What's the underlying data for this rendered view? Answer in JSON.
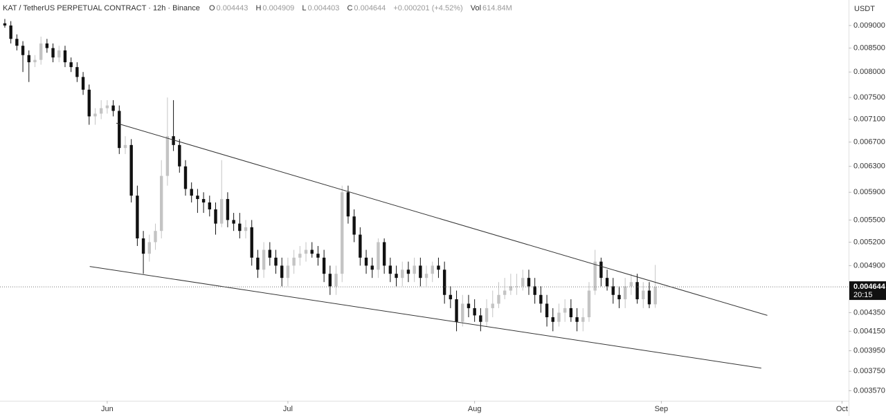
{
  "chart_data": {
    "type": "candlestick",
    "title": "KAT / TetherUS PERPETUAL CONTRACT · 12h · Binance",
    "open_label": "O",
    "high_label": "H",
    "low_label": "L",
    "close_label": "C",
    "change": "+0.000201 (+4.52%)",
    "volume_label": "Vol",
    "volume": "614.84M",
    "currency": "USDT",
    "countdown": "20:15",
    "log_scale": true,
    "up_color": "#c4c4c4",
    "down_color": "#111111",
    "xlim": [
      -17.8,
      123.1
    ],
    "xticks": [
      {
        "value": 0,
        "label": "Jun"
      },
      {
        "value": 30,
        "label": "Jul"
      },
      {
        "value": 61,
        "label": "Aug"
      },
      {
        "value": 92,
        "label": "Sep"
      },
      {
        "value": 122,
        "label": "Oct"
      }
    ],
    "ylim": [
      0.00348,
      0.0096
    ],
    "yticks": [
      {
        "value": 0.009,
        "label": "0.009000"
      },
      {
        "value": 0.0085,
        "label": "0.008500"
      },
      {
        "value": 0.008,
        "label": "0.008000"
      },
      {
        "value": 0.0075,
        "label": "0.007500"
      },
      {
        "value": 0.0071,
        "label": "0.007100"
      },
      {
        "value": 0.0067,
        "label": "0.006700"
      },
      {
        "value": 0.0063,
        "label": "0.006300"
      },
      {
        "value": 0.0059,
        "label": "0.005900"
      },
      {
        "value": 0.0055,
        "label": "0.005500"
      },
      {
        "value": 0.0052,
        "label": "0.005200"
      },
      {
        "value": 0.0049,
        "label": "0.004900"
      },
      {
        "value": 0.00435,
        "label": "0.004350"
      },
      {
        "value": 0.00415,
        "label": "0.004150"
      },
      {
        "value": 0.00395,
        "label": "0.003950"
      },
      {
        "value": 0.00375,
        "label": "0.003750"
      },
      {
        "value": 0.00357,
        "label": "0.003570"
      }
    ],
    "x": [
      -17,
      -16,
      -15,
      -14,
      -13,
      -12,
      -11,
      -10,
      -9,
      -8,
      -7,
      -6,
      -5,
      -4,
      -3,
      -2,
      -1,
      0,
      1,
      2,
      3,
      4,
      5,
      6,
      7,
      8,
      9,
      10,
      11,
      12,
      13,
      14,
      15,
      16,
      17,
      18,
      19,
      20,
      21,
      22,
      23,
      24,
      25,
      26,
      27,
      28,
      29,
      30,
      31,
      32,
      33,
      34,
      35,
      36,
      37,
      38,
      39,
      40,
      41,
      42,
      43,
      44,
      45,
      46,
      47,
      48,
      49,
      50,
      51,
      52,
      53,
      54,
      55,
      56,
      57,
      58,
      59,
      60,
      61,
      62,
      63,
      64,
      65,
      66,
      67,
      68,
      69,
      70,
      71,
      72,
      73,
      74,
      75,
      76,
      77,
      78,
      79,
      80,
      81,
      82,
      83,
      84,
      85,
      86,
      87,
      88,
      89,
      90,
      91
    ],
    "open": [
      0.00905,
      0.009,
      0.0087,
      0.00855,
      0.00835,
      0.0082,
      0.00825,
      0.0086,
      0.0085,
      0.0083,
      0.00845,
      0.0082,
      0.0081,
      0.0079,
      0.00765,
      0.00715,
      0.0072,
      0.0073,
      0.00735,
      0.00725,
      0.0066,
      0.00665,
      0.00585,
      0.00525,
      0.00505,
      0.0052,
      0.00535,
      0.00615,
      0.0068,
      0.00665,
      0.0063,
      0.00595,
      0.00585,
      0.0058,
      0.00575,
      0.00565,
      0.00545,
      0.0058,
      0.0055,
      0.00545,
      0.00535,
      0.0054,
      0.005,
      0.00485,
      0.0051,
      0.005,
      0.0049,
      0.00475,
      0.0049,
      0.005,
      0.00505,
      0.0051,
      0.00505,
      0.005,
      0.0048,
      0.00465,
      0.0048,
      0.0059,
      0.00555,
      0.0053,
      0.005,
      0.0049,
      0.00485,
      0.0052,
      0.0049,
      0.0048,
      0.00475,
      0.00485,
      0.0048,
      0.0049,
      0.00475,
      0.0048,
      0.0049,
      0.00485,
      0.00455,
      0.0045,
      0.00425,
      0.00445,
      0.0044,
      0.00432,
      0.00425,
      0.0044,
      0.00445,
      0.00455,
      0.0046,
      0.00465,
      0.00465,
      0.00475,
      0.00465,
      0.00455,
      0.00445,
      0.0043,
      0.00425,
      0.00435,
      0.0044,
      0.0043,
      0.00425,
      0.0043,
      0.0046,
      0.00495,
      0.00475,
      0.00465,
      0.00455,
      0.0045,
      0.00465,
      0.0047,
      0.0045,
      0.0046,
      0.004443
    ],
    "high": [
      0.00915,
      0.0091,
      0.0088,
      0.00865,
      0.00845,
      0.00835,
      0.00875,
      0.0087,
      0.0086,
      0.00855,
      0.00855,
      0.0083,
      0.0082,
      0.008,
      0.00775,
      0.0073,
      0.00745,
      0.00745,
      0.00745,
      0.00735,
      0.0068,
      0.00675,
      0.006,
      0.00535,
      0.0053,
      0.00545,
      0.0064,
      0.0075,
      0.00745,
      0.00675,
      0.0064,
      0.00605,
      0.00595,
      0.0059,
      0.00585,
      0.00575,
      0.0064,
      0.0059,
      0.0056,
      0.0056,
      0.0055,
      0.0055,
      0.0051,
      0.0052,
      0.0052,
      0.0051,
      0.005,
      0.005,
      0.0051,
      0.00515,
      0.0052,
      0.0052,
      0.00515,
      0.0051,
      0.0049,
      0.0049,
      0.006,
      0.006,
      0.00565,
      0.0054,
      0.0051,
      0.005,
      0.00525,
      0.00525,
      0.005,
      0.0049,
      0.00495,
      0.00495,
      0.005,
      0.005,
      0.0049,
      0.00495,
      0.005,
      0.00495,
      0.00465,
      0.0046,
      0.00455,
      0.00455,
      0.0045,
      0.0044,
      0.0045,
      0.0046,
      0.0047,
      0.00475,
      0.0048,
      0.0048,
      0.00485,
      0.00485,
      0.00475,
      0.00465,
      0.00455,
      0.0044,
      0.00445,
      0.0045,
      0.0045,
      0.0044,
      0.0044,
      0.0047,
      0.0051,
      0.005,
      0.00485,
      0.00475,
      0.00465,
      0.00475,
      0.0048,
      0.0048,
      0.0047,
      0.0047,
      0.004909
    ],
    "low": [
      0.00895,
      0.0086,
      0.00845,
      0.008,
      0.0078,
      0.0081,
      0.00815,
      0.0084,
      0.0082,
      0.0082,
      0.0081,
      0.008,
      0.0078,
      0.00755,
      0.007,
      0.007,
      0.0071,
      0.0072,
      0.00715,
      0.0065,
      0.0065,
      0.00575,
      0.00515,
      0.0048,
      0.00495,
      0.0051,
      0.00525,
      0.006,
      0.00655,
      0.0062,
      0.00585,
      0.00575,
      0.0056,
      0.0056,
      0.00555,
      0.0053,
      0.0054,
      0.0054,
      0.00535,
      0.00525,
      0.00525,
      0.0049,
      0.00475,
      0.00475,
      0.0049,
      0.0048,
      0.00465,
      0.00465,
      0.0048,
      0.0049,
      0.00495,
      0.005,
      0.0049,
      0.0047,
      0.00455,
      0.00455,
      0.0047,
      0.00545,
      0.0052,
      0.0049,
      0.0048,
      0.00475,
      0.00475,
      0.0048,
      0.0047,
      0.00465,
      0.00465,
      0.0047,
      0.0047,
      0.00465,
      0.00465,
      0.0047,
      0.00475,
      0.00445,
      0.0044,
      0.00415,
      0.0042,
      0.0043,
      0.00425,
      0.00415,
      0.0042,
      0.0043,
      0.0044,
      0.0045,
      0.00455,
      0.00455,
      0.0046,
      0.00455,
      0.00445,
      0.00435,
      0.0042,
      0.00415,
      0.0042,
      0.00425,
      0.00425,
      0.00415,
      0.00415,
      0.00425,
      0.00455,
      0.00465,
      0.0046,
      0.00445,
      0.0044,
      0.0044,
      0.00455,
      0.00445,
      0.0044,
      0.0044,
      0.004403
    ],
    "close": [
      0.009,
      0.0087,
      0.00855,
      0.00835,
      0.0082,
      0.00825,
      0.0086,
      0.0085,
      0.0083,
      0.00845,
      0.0082,
      0.0081,
      0.0079,
      0.00765,
      0.00715,
      0.0072,
      0.0073,
      0.00735,
      0.00725,
      0.0066,
      0.00665,
      0.00585,
      0.00525,
      0.00505,
      0.0052,
      0.00535,
      0.00615,
      0.0068,
      0.00665,
      0.0063,
      0.00595,
      0.00585,
      0.0058,
      0.00575,
      0.00565,
      0.00545,
      0.0058,
      0.0055,
      0.00545,
      0.00535,
      0.0054,
      0.005,
      0.00485,
      0.0051,
      0.005,
      0.0049,
      0.00475,
      0.0049,
      0.005,
      0.00505,
      0.0051,
      0.00505,
      0.005,
      0.0048,
      0.00465,
      0.0048,
      0.0059,
      0.00555,
      0.0053,
      0.005,
      0.0049,
      0.00485,
      0.0052,
      0.0049,
      0.0048,
      0.00475,
      0.00485,
      0.0048,
      0.0049,
      0.00475,
      0.0048,
      0.0049,
      0.00485,
      0.00455,
      0.0045,
      0.00425,
      0.00445,
      0.0044,
      0.00432,
      0.00425,
      0.0044,
      0.00445,
      0.00455,
      0.0046,
      0.00465,
      0.00465,
      0.00475,
      0.00465,
      0.00455,
      0.00445,
      0.0043,
      0.00425,
      0.00435,
      0.0044,
      0.0043,
      0.00425,
      0.0043,
      0.0046,
      0.00495,
      0.00475,
      0.00465,
      0.00455,
      0.0045,
      0.00465,
      0.0047,
      0.0045,
      0.0046,
      0.004443,
      0.004644
    ],
    "trendlines": [
      {
        "x": [
          1.5,
          109.6
        ],
        "y": [
          0.00703,
          0.00432
        ]
      },
      {
        "x": [
          -2.9,
          108.6
        ],
        "y": [
          0.00489,
          0.00378
        ]
      }
    ]
  }
}
